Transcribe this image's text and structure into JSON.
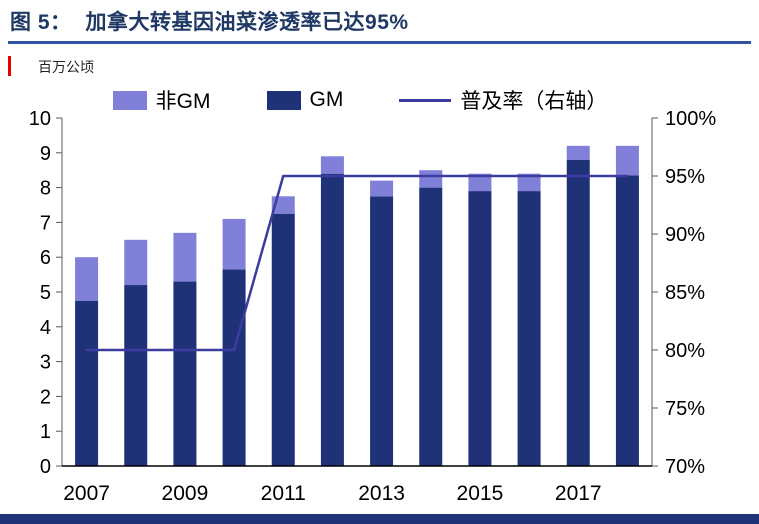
{
  "page": {
    "title_prefix": "图 5：",
    "title_text": "加拿大转基因油菜渗透率已达95%",
    "unit_label": "百万公顷",
    "title_color": "#1F3864",
    "underline_color": "#2F54A3",
    "red_mark_color": "#E80000",
    "footer_bar_color": "#1F3278"
  },
  "legend": {
    "items": [
      {
        "label": "非GM",
        "marker": "square",
        "color": "#8080D8"
      },
      {
        "label": "GM",
        "marker": "square",
        "color": "#1F3278"
      },
      {
        "label": "普及率（右轴）",
        "marker": "line",
        "color": "#3C3C9E"
      }
    ]
  },
  "chart_data": {
    "type": "bar",
    "subtype": "stacked-bars-with-line",
    "title": "加拿大转基因油菜渗透率已达95%",
    "ylabel_left": "百万公顷",
    "x": [
      2007,
      2008,
      2009,
      2010,
      2011,
      2012,
      2013,
      2014,
      2015,
      2016,
      2017,
      2018
    ],
    "series": [
      {
        "name": "GM",
        "type": "bar",
        "stack": "canola",
        "color": "#1F3278",
        "values": [
          4.75,
          5.2,
          5.3,
          5.65,
          7.25,
          8.4,
          7.75,
          8.0,
          7.9,
          7.9,
          8.8,
          8.35
        ]
      },
      {
        "name": "非GM",
        "type": "bar",
        "stack": "canola",
        "color": "#8080D8",
        "values": [
          1.25,
          1.3,
          1.4,
          1.45,
          0.5,
          0.5,
          0.45,
          0.5,
          0.5,
          0.5,
          0.4,
          0.85
        ]
      },
      {
        "name": "普及率（右轴）",
        "type": "line",
        "axis": "right",
        "color": "#3C3C9E",
        "values": [
          80,
          80,
          80,
          80,
          95,
          95,
          95,
          95,
          95,
          95,
          95,
          95
        ]
      }
    ],
    "left_axis": {
      "min": 0,
      "max": 10,
      "step": 1,
      "unit": "百万公顷"
    },
    "right_axis": {
      "min": 70,
      "max": 100,
      "step": 5,
      "suffix": "%"
    },
    "x_tick_labels": [
      "2007",
      "2009",
      "2011",
      "2013",
      "2015",
      "2017"
    ],
    "x_tick_indices": [
      0,
      2,
      4,
      6,
      8,
      10
    ],
    "grid": false,
    "legend_position": "top"
  }
}
